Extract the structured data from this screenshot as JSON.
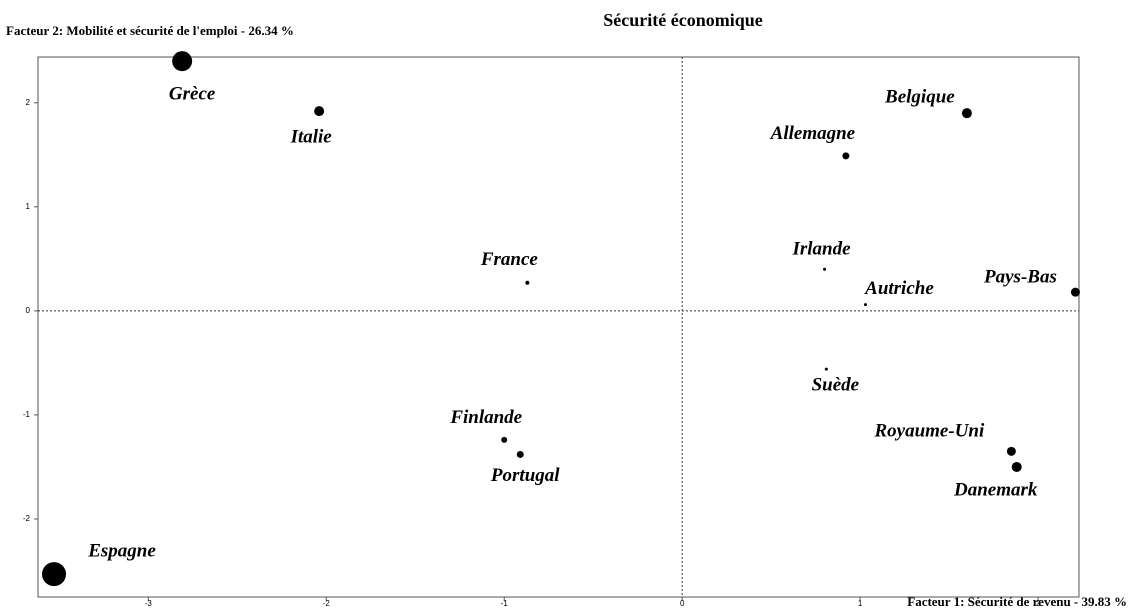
{
  "chart_data": {
    "type": "scatter",
    "title": "Sécurité économique",
    "x_label": "Facteur 1: Sécurité de revenu  -  39.83 %",
    "y_label": "Facteur 2: Mobilité et sécurité de l'emploi  -  26.34 %",
    "labels": [
      "Grèce",
      "Italie",
      "France",
      "Finlande",
      "Portugal",
      "Espagne",
      "Belgique",
      "Allemagne",
      "Irlande",
      "Autriche",
      "Pays-Bas",
      "Suède",
      "Royaume-Uni",
      "Danemark"
    ],
    "x": [
      -2.81,
      -2.04,
      -0.87,
      -1.0,
      -0.91,
      -3.53,
      1.6,
      0.92,
      0.8,
      1.03,
      2.21,
      0.81,
      1.85,
      1.88
    ],
    "values": [
      2.4,
      1.92,
      0.27,
      -1.24,
      -1.38,
      -2.53,
      1.9,
      1.49,
      0.4,
      0.06,
      0.18,
      -0.56,
      -1.35,
      -1.5
    ],
    "sizes": [
      10,
      5,
      2,
      3,
      3.5,
      12,
      5,
      3.5,
      1.5,
      1.5,
      4.5,
      1.5,
      4.5,
      5
    ],
    "color": "#000000",
    "xlim": [
      -3.62,
      2.23
    ],
    "ylim": [
      -2.75,
      2.44
    ],
    "xticks": [
      -3,
      -2,
      -1,
      0,
      1,
      2
    ],
    "yticks": [
      -2,
      -1,
      0,
      1,
      2
    ],
    "zero_lines": true
  }
}
